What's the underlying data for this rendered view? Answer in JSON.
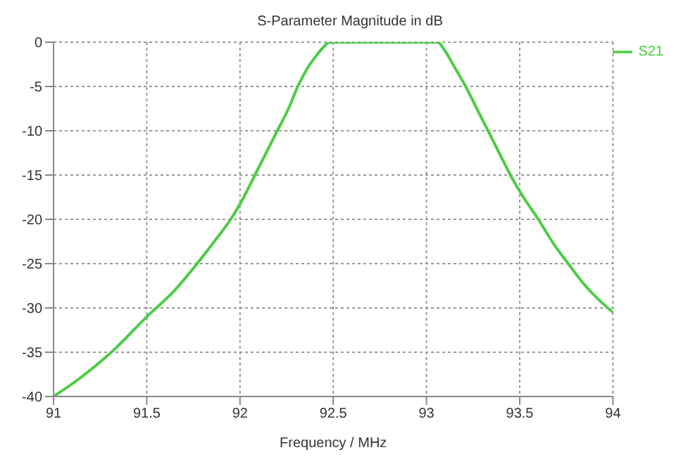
{
  "chart_data": {
    "type": "line",
    "title": "S-Parameter Magnitude in dB",
    "xlabel": "Frequency / MHz",
    "x": [
      91,
      91.15,
      91.31,
      91.5,
      91.65,
      91.77,
      91.88,
      91.95,
      92.02,
      92.08,
      92.14,
      92.2,
      92.26,
      92.31,
      92.36,
      92.41,
      92.45,
      92.48,
      92.6,
      92.8,
      93,
      93.06,
      93.1,
      93.15,
      93.21,
      93.27,
      93.33,
      93.39,
      93.45,
      93.52,
      93.6,
      93.68,
      93.76,
      93.84,
      93.92,
      94
    ],
    "series": [
      {
        "name": "S21",
        "color": "#4ccc44",
        "values": [
          -40,
          -37.8,
          -35,
          -31,
          -28,
          -25,
          -22,
          -20,
          -17.5,
          -15,
          -12.5,
          -10,
          -7.5,
          -5,
          -3,
          -1.5,
          -0.5,
          0,
          0,
          0,
          0,
          0,
          -1,
          -2.8,
          -5,
          -7.5,
          -10,
          -12.5,
          -15,
          -17.5,
          -20,
          -22.7,
          -25,
          -27.2,
          -29,
          -30.5
        ]
      }
    ],
    "xlim": [
      91,
      94
    ],
    "xticks": [
      91,
      91.5,
      92,
      92.5,
      93,
      93.5,
      94
    ],
    "ylim": [
      -40,
      0
    ],
    "yticks": [
      0,
      -5,
      -10,
      -15,
      -20,
      -25,
      -30,
      -35,
      -40
    ],
    "grid": true,
    "legend": "right",
    "marker": "none",
    "line_style": "solid"
  }
}
